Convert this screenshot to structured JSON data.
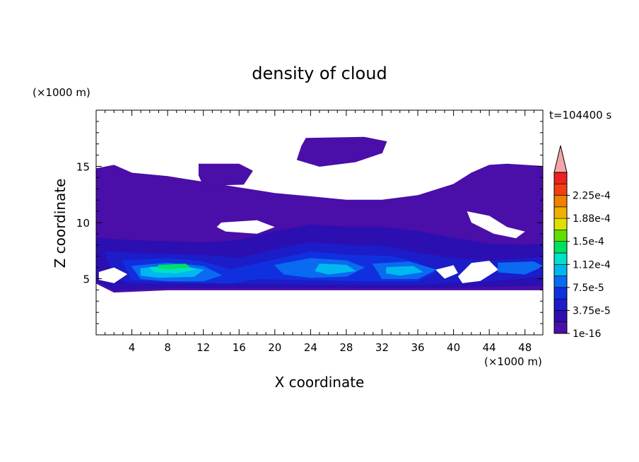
{
  "chart_data": {
    "type": "heatmap",
    "title": "density of cloud",
    "xlabel": "X coordinate",
    "ylabel": "Z coordinate",
    "x_unit": "(×1000 m)",
    "y_unit": "(×1000 m)",
    "time_label": "t=104400 s",
    "xlim": [
      0,
      50
    ],
    "ylim": [
      0,
      20
    ],
    "x_ticks": [
      4,
      8,
      12,
      16,
      20,
      24,
      28,
      32,
      36,
      40,
      44,
      48
    ],
    "y_ticks": [
      5,
      10,
      15
    ],
    "colorbar": {
      "levels": [
        1e-16,
        1.875e-05,
        3.75e-05,
        5.625e-05,
        7.5e-05,
        9.375e-05,
        0.0001125,
        0.00013125,
        0.00015,
        0.00016875,
        0.0001875,
        0.00020625,
        0.000225,
        0.00024375
      ],
      "labels": [
        "1e-16",
        "3.75e-5",
        "7.5e-5",
        "1.12e-4",
        "1.5e-4",
        "1.88e-4",
        "2.25e-4"
      ],
      "label_levels": [
        0,
        2,
        4,
        6,
        8,
        10,
        12
      ],
      "colors": [
        "#4a0fa8",
        "#2c0fb0",
        "#1c1cc8",
        "#1030e0",
        "#0a6af0",
        "#00b8f0",
        "#00e0c8",
        "#00e060",
        "#60e000",
        "#e0e000",
        "#f0b000",
        "#f08000",
        "#f04010",
        "#f02020"
      ],
      "overflow_color": "#f4a6a6"
    },
    "regions": [
      {
        "level": 0,
        "points": [
          [
            0,
            14.8
          ],
          [
            2,
            15.1
          ],
          [
            4,
            14.4
          ],
          [
            8,
            14.1
          ],
          [
            12,
            13.6
          ],
          [
            16,
            13.1
          ],
          [
            20,
            12.6
          ],
          [
            24,
            12.3
          ],
          [
            28,
            12.0
          ],
          [
            32,
            12.0
          ],
          [
            36,
            12.4
          ],
          [
            40,
            13.4
          ],
          [
            42,
            14.4
          ],
          [
            44,
            15.1
          ],
          [
            46,
            15.2
          ],
          [
            48,
            15.1
          ],
          [
            50,
            15.0
          ],
          [
            50,
            4.0
          ],
          [
            46,
            4.0
          ],
          [
            40,
            4.0
          ],
          [
            32,
            4.0
          ],
          [
            24,
            4.0
          ],
          [
            16,
            4.0
          ],
          [
            8,
            4.0
          ],
          [
            2,
            3.8
          ],
          [
            0,
            4.6
          ]
        ]
      },
      {
        "level": 0,
        "points": [
          [
            11.5,
            15.2
          ],
          [
            16,
            15.2
          ],
          [
            17.5,
            14.6
          ],
          [
            16.5,
            13.4
          ],
          [
            12,
            13.3
          ],
          [
            11.5,
            14.2
          ]
        ]
      },
      {
        "level": 0,
        "points": [
          [
            23.5,
            17.5
          ],
          [
            30,
            17.6
          ],
          [
            32.5,
            17.2
          ],
          [
            32,
            16.2
          ],
          [
            29,
            15.4
          ],
          [
            25,
            15.0
          ],
          [
            22.5,
            15.6
          ],
          [
            23,
            16.8
          ]
        ]
      },
      {
        "level": 1,
        "points": [
          [
            0,
            8.6
          ],
          [
            4,
            8.4
          ],
          [
            8,
            8.3
          ],
          [
            12,
            8.2
          ],
          [
            16,
            8.4
          ],
          [
            20,
            9.2
          ],
          [
            24,
            9.8
          ],
          [
            28,
            9.6
          ],
          [
            32,
            9.6
          ],
          [
            36,
            9.2
          ],
          [
            40,
            8.6
          ],
          [
            44,
            8.1
          ],
          [
            48,
            8.0
          ],
          [
            50,
            8.1
          ],
          [
            50,
            4.4
          ],
          [
            40,
            4.2
          ],
          [
            24,
            4.2
          ],
          [
            8,
            4.2
          ],
          [
            2,
            4.0
          ],
          [
            0,
            4.8
          ]
        ]
      },
      {
        "level": 2,
        "points": [
          [
            1,
            7.4
          ],
          [
            6,
            7.2
          ],
          [
            12,
            7.1
          ],
          [
            16,
            6.8
          ],
          [
            20,
            7.6
          ],
          [
            24,
            8.2
          ],
          [
            28,
            8.0
          ],
          [
            32,
            7.9
          ],
          [
            36,
            7.3
          ],
          [
            40,
            6.8
          ],
          [
            44,
            6.6
          ],
          [
            48,
            6.8
          ],
          [
            50,
            6.9
          ],
          [
            50,
            5.2
          ],
          [
            44,
            4.8
          ],
          [
            36,
            4.5
          ],
          [
            24,
            4.5
          ],
          [
            12,
            4.6
          ],
          [
            4,
            4.6
          ],
          [
            2,
            5.0
          ]
        ]
      },
      {
        "level": 3,
        "points": [
          [
            3,
            6.6
          ],
          [
            8,
            6.8
          ],
          [
            12,
            6.5
          ],
          [
            15,
            5.8
          ],
          [
            19,
            6.5
          ],
          [
            24,
            7.4
          ],
          [
            28,
            7.1
          ],
          [
            33,
            7.0
          ],
          [
            36,
            6.4
          ],
          [
            38,
            5.6
          ],
          [
            36,
            4.8
          ],
          [
            30,
            4.8
          ],
          [
            24,
            4.9
          ],
          [
            18,
            5.0
          ],
          [
            15,
            4.6
          ],
          [
            10,
            4.7
          ],
          [
            4,
            4.9
          ]
        ]
      },
      {
        "level": 4,
        "points": [
          [
            4,
            6.1
          ],
          [
            8,
            6.4
          ],
          [
            12,
            6.1
          ],
          [
            14,
            5.3
          ],
          [
            12,
            4.8
          ],
          [
            8,
            4.8
          ],
          [
            5,
            5.0
          ]
        ]
      },
      {
        "level": 4,
        "points": [
          [
            20,
            6.2
          ],
          [
            24,
            6.8
          ],
          [
            28,
            6.6
          ],
          [
            30,
            6.0
          ],
          [
            28,
            5.2
          ],
          [
            24,
            5.1
          ],
          [
            21,
            5.4
          ]
        ]
      },
      {
        "level": 4,
        "points": [
          [
            31,
            6.3
          ],
          [
            35,
            6.5
          ],
          [
            38,
            5.8
          ],
          [
            36,
            5.0
          ],
          [
            32,
            5.0
          ]
        ]
      },
      {
        "level": 4,
        "points": [
          [
            45,
            6.4
          ],
          [
            49,
            6.5
          ],
          [
            50,
            6.1
          ],
          [
            48,
            5.4
          ],
          [
            45,
            5.6
          ]
        ]
      },
      {
        "level": 5,
        "points": [
          [
            5,
            5.9
          ],
          [
            9,
            6.2
          ],
          [
            12,
            5.8
          ],
          [
            11,
            5.2
          ],
          [
            7,
            5.1
          ],
          [
            5,
            5.3
          ]
        ]
      },
      {
        "level": 5,
        "points": [
          [
            25,
            6.3
          ],
          [
            28,
            6.2
          ],
          [
            29,
            5.7
          ],
          [
            26,
            5.4
          ],
          [
            24.5,
            5.7
          ]
        ]
      },
      {
        "level": 5,
        "points": [
          [
            32.5,
            6.0
          ],
          [
            35.5,
            6.1
          ],
          [
            36.5,
            5.6
          ],
          [
            34,
            5.3
          ],
          [
            32.5,
            5.5
          ]
        ]
      },
      {
        "level": 6,
        "points": [
          [
            6,
            6.0
          ],
          [
            9.5,
            6.2
          ],
          [
            11,
            5.8
          ],
          [
            9,
            5.5
          ],
          [
            6.5,
            5.6
          ]
        ]
      },
      {
        "level": 7,
        "points": [
          [
            7,
            6.2
          ],
          [
            10,
            6.3
          ],
          [
            10.5,
            6.0
          ],
          [
            8.5,
            5.9
          ],
          [
            7,
            5.95
          ]
        ]
      }
    ],
    "holes": [
      {
        "points": [
          [
            14,
            10.0
          ],
          [
            18,
            10.2
          ],
          [
            20,
            9.6
          ],
          [
            18,
            9.0
          ],
          [
            14.5,
            9.2
          ],
          [
            13.5,
            9.6
          ]
        ]
      },
      {
        "points": [
          [
            41.5,
            11.0
          ],
          [
            44,
            10.6
          ],
          [
            46,
            9.6
          ],
          [
            48,
            9.2
          ],
          [
            47,
            8.6
          ],
          [
            44.5,
            9.0
          ],
          [
            42,
            10.0
          ]
        ]
      },
      {
        "points": [
          [
            0.3,
            5.6
          ],
          [
            2,
            6.0
          ],
          [
            3.5,
            5.4
          ],
          [
            2,
            4.6
          ],
          [
            0.3,
            4.9
          ]
        ]
      },
      {
        "points": [
          [
            40.5,
            5.2
          ],
          [
            42,
            6.4
          ],
          [
            44,
            6.6
          ],
          [
            45,
            5.8
          ],
          [
            43,
            4.8
          ],
          [
            41,
            4.6
          ]
        ]
      },
      {
        "points": [
          [
            38,
            5.8
          ],
          [
            40,
            6.2
          ],
          [
            40.5,
            5.5
          ],
          [
            39,
            5.0
          ]
        ]
      }
    ]
  }
}
